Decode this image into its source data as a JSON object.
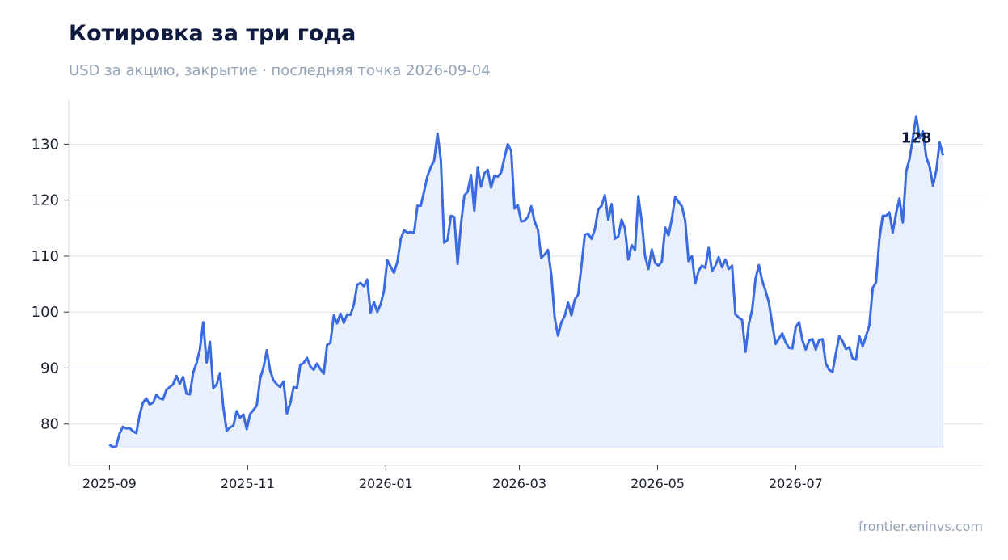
{
  "header": {
    "title": "Котировка за три года",
    "subtitle": "USD за акцию, закрытие · последняя точка 2026-09-04"
  },
  "footer": {
    "source": "frontier.eninvs.com"
  },
  "colors": {
    "line": "#3b6be0",
    "fill": "#e9effc",
    "grid": "#dde2f0",
    "axis": "#e3e6ee"
  },
  "chart_data": {
    "type": "area",
    "title": "Котировка за три года",
    "subtitle": "USD за акцию, закрытие · последняя точка 2026-09-04",
    "xlabel": "",
    "ylabel": "",
    "x_start": "2025-09-01",
    "x_end": "2026-09-04",
    "xlim": [
      "2025-08-14",
      "2026-09-22"
    ],
    "ylim": [
      72.6,
      138.0
    ],
    "y_ticks": [
      80,
      90,
      100,
      110,
      120,
      130
    ],
    "x_ticks": [
      "2025-09",
      "2025-11",
      "2026-01",
      "2026-03",
      "2026-05",
      "2026-07"
    ],
    "grid": true,
    "last_value_label": "128",
    "values": [
      76.3,
      75.9,
      76.0,
      78.3,
      79.5,
      79.2,
      79.3,
      78.7,
      78.4,
      81.6,
      83.8,
      84.6,
      83.5,
      83.8,
      85.2,
      84.6,
      84.4,
      86.1,
      86.6,
      87.1,
      88.6,
      87.2,
      88.4,
      85.4,
      85.3,
      89.2,
      90.9,
      93.3,
      98.2,
      91.0,
      94.7,
      86.4,
      87.1,
      89.1,
      83.1,
      78.8,
      79.4,
      79.7,
      82.3,
      81.1,
      81.7,
      79.1,
      81.8,
      82.5,
      83.3,
      88.1,
      90.1,
      93.2,
      89.5,
      87.8,
      87.1,
      86.6,
      87.6,
      81.9,
      83.7,
      86.6,
      86.4,
      90.6,
      90.9,
      91.8,
      90.3,
      89.7,
      90.8,
      89.8,
      89.0,
      94.1,
      94.5,
      99.4,
      98.0,
      99.7,
      98.1,
      99.6,
      99.5,
      101.3,
      104.9,
      105.2,
      104.6,
      105.8,
      99.9,
      101.8,
      100.0,
      101.4,
      103.8,
      109.3,
      108.1,
      107.0,
      109.0,
      113.1,
      114.6,
      114.2,
      114.3,
      114.2,
      119.0,
      119.0,
      121.6,
      124.3,
      125.9,
      127.1,
      131.9,
      127.1,
      112.4,
      112.9,
      117.2,
      117.0,
      108.6,
      115.6,
      120.8,
      121.5,
      124.5,
      118.1,
      125.8,
      122.4,
      124.8,
      125.4,
      122.2,
      124.4,
      124.2,
      124.9,
      127.6,
      130.0,
      128.8,
      118.5,
      119.1,
      116.2,
      116.3,
      117.0,
      118.9,
      116.2,
      114.7,
      109.7,
      110.3,
      111.1,
      106.6,
      99.0,
      95.8,
      98.2,
      99.3,
      101.7,
      99.4,
      102.2,
      103.1,
      108.2,
      113.8,
      114.0,
      113.1,
      114.8,
      118.3,
      119.0,
      120.9,
      116.5,
      119.3,
      113.1,
      113.5,
      116.5,
      114.9,
      109.4,
      112.0,
      111.1,
      120.7,
      116.2,
      110.0,
      107.7,
      111.2,
      108.8,
      108.3,
      109.0,
      115.1,
      113.7,
      116.6,
      120.6,
      119.7,
      118.9,
      116.3,
      109.1,
      110.0,
      105.1,
      107.4,
      108.3,
      107.9,
      111.5,
      107.3,
      108.3,
      109.8,
      108.0,
      109.4,
      107.7,
      108.3,
      99.6,
      99.0,
      98.6,
      92.9,
      97.9,
      100.4,
      106.0,
      108.4,
      105.6,
      103.8,
      101.7,
      97.8,
      94.3,
      95.3,
      96.2,
      94.6,
      93.6,
      93.5,
      97.3,
      98.2,
      95.0,
      93.3,
      94.9,
      95.2,
      93.3,
      95.0,
      95.2,
      90.8,
      89.7,
      89.3,
      92.6,
      95.7,
      94.8,
      93.4,
      93.7,
      91.7,
      91.5,
      95.7,
      93.9,
      95.7,
      97.6,
      104.3,
      105.3,
      113.1,
      117.2,
      117.2,
      117.8,
      114.2,
      117.7,
      120.3,
      116.0,
      125.1,
      127.4,
      131.1,
      135.0,
      131.1,
      132.3,
      127.7,
      126.0,
      122.6,
      125.3,
      130.3,
      128.0
    ]
  }
}
